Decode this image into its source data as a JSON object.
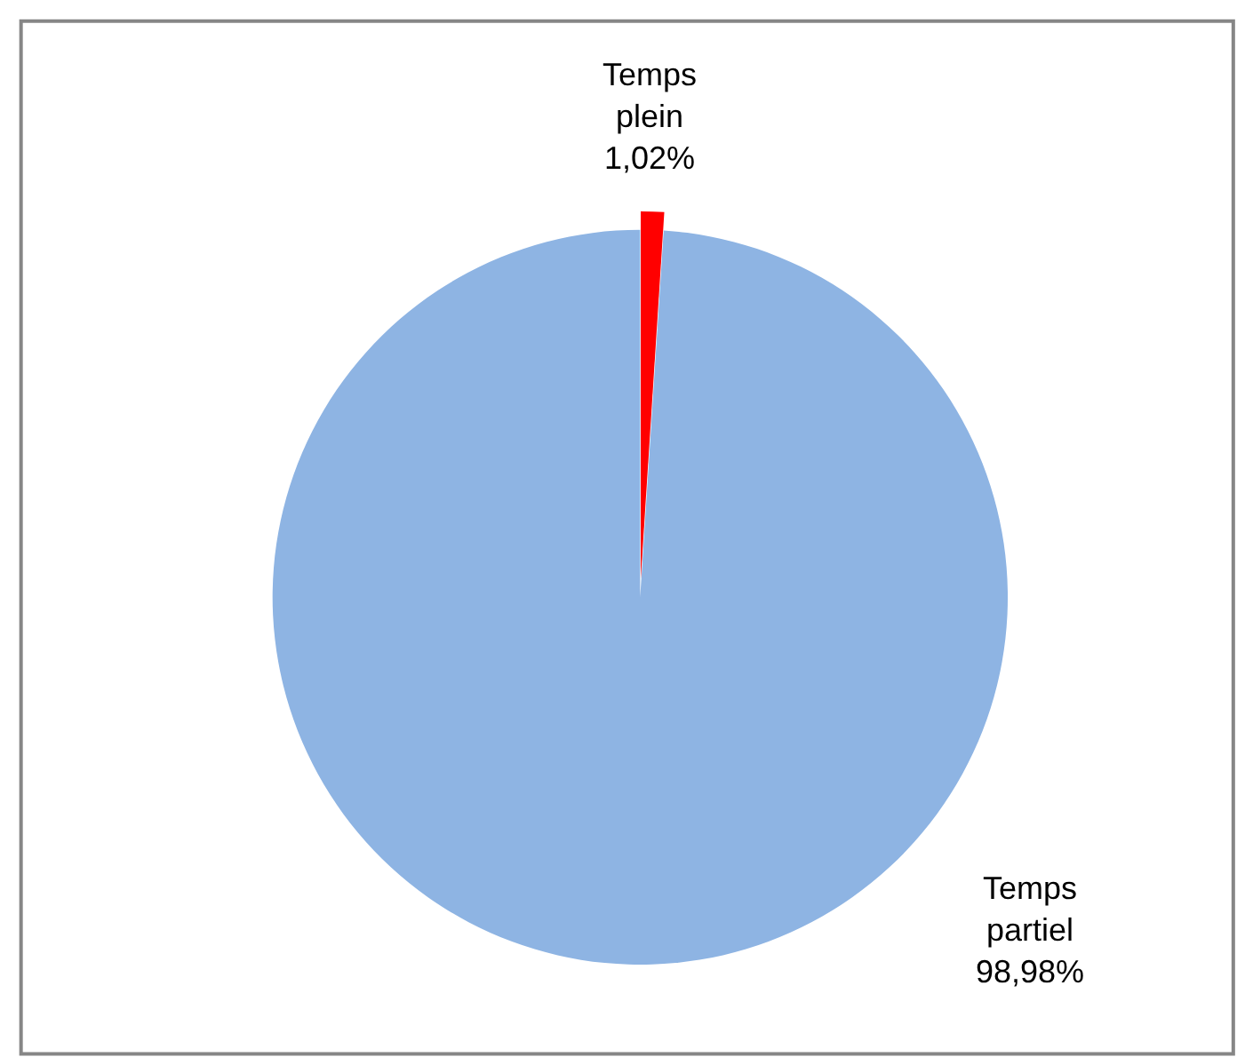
{
  "chart_data": {
    "type": "pie",
    "categories": [
      "Temps plein",
      "Temps partiel"
    ],
    "values": [
      1.02,
      98.98
    ],
    "colors": [
      "#ff0000",
      "#8eb4e3"
    ],
    "value_labels": [
      "1,02%",
      "98,98%"
    ],
    "legend": false
  }
}
